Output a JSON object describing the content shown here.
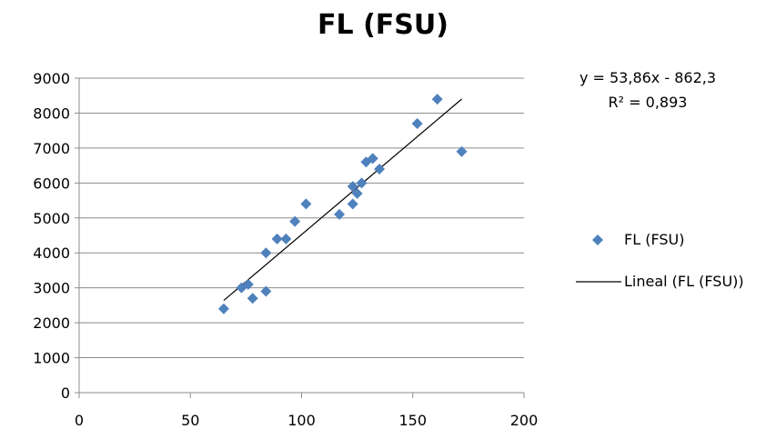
{
  "chart_data": {
    "type": "scatter",
    "title": "FL (FSU)",
    "xlabel": "",
    "ylabel": "",
    "xlim": [
      0,
      200
    ],
    "ylim": [
      0,
      9000
    ],
    "x_ticks": [
      0,
      50,
      100,
      150,
      200
    ],
    "y_ticks": [
      0,
      1000,
      2000,
      3000,
      4000,
      5000,
      6000,
      7000,
      8000,
      9000
    ],
    "grid": "horizontal",
    "legend_position": "right",
    "series": [
      {
        "name": "FL (FSU)",
        "color": "#4f81bd",
        "marker": "diamond",
        "points": [
          {
            "x": 65,
            "y": 2400
          },
          {
            "x": 73,
            "y": 3000
          },
          {
            "x": 76,
            "y": 3100
          },
          {
            "x": 78,
            "y": 2700
          },
          {
            "x": 84,
            "y": 4000
          },
          {
            "x": 84,
            "y": 2900
          },
          {
            "x": 89,
            "y": 4400
          },
          {
            "x": 93,
            "y": 4400
          },
          {
            "x": 97,
            "y": 4900
          },
          {
            "x": 102,
            "y": 5400
          },
          {
            "x": 117,
            "y": 5100
          },
          {
            "x": 123,
            "y": 5400
          },
          {
            "x": 123,
            "y": 5900
          },
          {
            "x": 125,
            "y": 5700
          },
          {
            "x": 127,
            "y": 6000
          },
          {
            "x": 129,
            "y": 6600
          },
          {
            "x": 132,
            "y": 6700
          },
          {
            "x": 135,
            "y": 6400
          },
          {
            "x": 152,
            "y": 7700
          },
          {
            "x": 161,
            "y": 8400
          },
          {
            "x": 172,
            "y": 6900
          }
        ]
      }
    ],
    "trendline": {
      "name": "Lineal (FL (FSU))",
      "type": "linear",
      "slope": 53.86,
      "intercept": -862.3,
      "x_range": [
        65,
        172
      ],
      "color": "#000000",
      "equation_text": "y = 53,86x - 862,3",
      "r2_text": "R² = 0,893"
    }
  }
}
